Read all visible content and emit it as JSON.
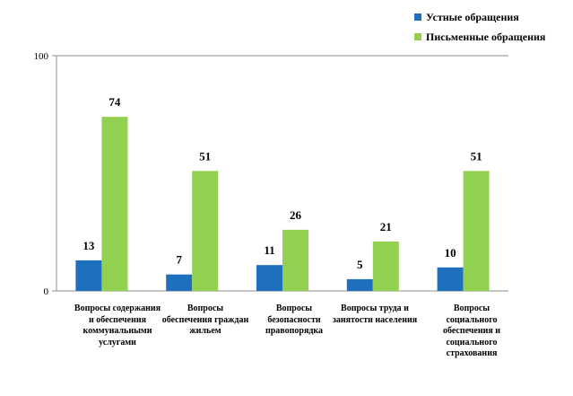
{
  "chart_data": {
    "type": "bar",
    "title": "",
    "xlabel": "",
    "ylabel": "",
    "ylim": [
      0,
      100
    ],
    "yticks": [
      "0",
      "100"
    ],
    "categories": [
      "Вопросы содержания и обеспечения коммунальными услугами",
      "Вопросы обеспечения граждан жильем",
      "Вопросы безопасности правопорядка",
      "Вопросы труда и занятости населения",
      "Вопросы социального обеспечения и социального страхования"
    ],
    "series": [
      {
        "name": "Устные обращения",
        "color": "#1F6FBF",
        "values": [
          13,
          7,
          11,
          5,
          10
        ]
      },
      {
        "name": "Письменные обращения",
        "color": "#92D050",
        "values": [
          74,
          51,
          26,
          21,
          51
        ]
      }
    ],
    "legend_position": "top-right",
    "grid": false
  }
}
